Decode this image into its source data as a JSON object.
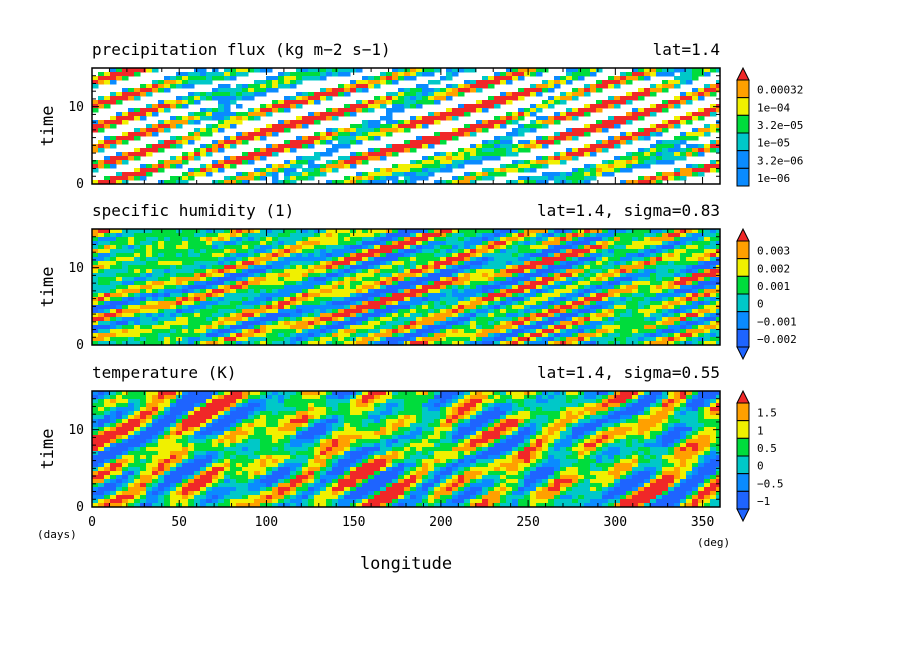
{
  "chart_data": [
    {
      "type": "heatmap",
      "title": "precipitation flux (kg m−2 s−1)",
      "subtitle": "lat=1.4",
      "ylabel": "time",
      "xlim": [
        0,
        360
      ],
      "ylim": [
        0,
        15
      ],
      "yticks": [
        "0",
        "10"
      ],
      "colorbar_labels": [
        "0.00032",
        "1e−04",
        "3.2e−05",
        "1e−05",
        "3.2e−06",
        "1e−06"
      ],
      "colors": [
        "#0a8bff",
        "#00c8c8",
        "#00dc3c",
        "#f0f000",
        "#ffa000",
        "#f02828"
      ]
    },
    {
      "type": "heatmap",
      "title": "specific humidity (1)",
      "subtitle": "lat=1.4, sigma=0.83",
      "ylabel": "time",
      "xlim": [
        0,
        360
      ],
      "ylim": [
        0,
        15
      ],
      "yticks": [
        "0",
        "10"
      ],
      "colorbar_labels": [
        "0.003",
        "0.002",
        "0.001",
        "0",
        "−0.001",
        "−0.002"
      ],
      "colors": [
        "#1e64ff",
        "#0a8bff",
        "#00c8c8",
        "#00dc3c",
        "#f0f000",
        "#ffa000",
        "#f02828"
      ]
    },
    {
      "type": "heatmap",
      "title": "temperature (K)",
      "subtitle": "lat=1.4, sigma=0.55",
      "ylabel": "time",
      "xlim": [
        0,
        360
      ],
      "ylim": [
        0,
        15
      ],
      "yticks": [
        "0",
        "10"
      ],
      "xticks": [
        "0",
        "50",
        "100",
        "150",
        "200",
        "250",
        "300",
        "350"
      ],
      "xlabel": "longitude",
      "x_unit": "(deg)",
      "y_unit": "(days)",
      "colorbar_labels": [
        "1.5",
        "1",
        "0.5",
        "0",
        "−0.5",
        "−1"
      ],
      "colors": [
        "#1e64ff",
        "#0a8bff",
        "#00c8c8",
        "#00dc3c",
        "#f0f000",
        "#ffa000",
        "#f02828"
      ]
    }
  ]
}
